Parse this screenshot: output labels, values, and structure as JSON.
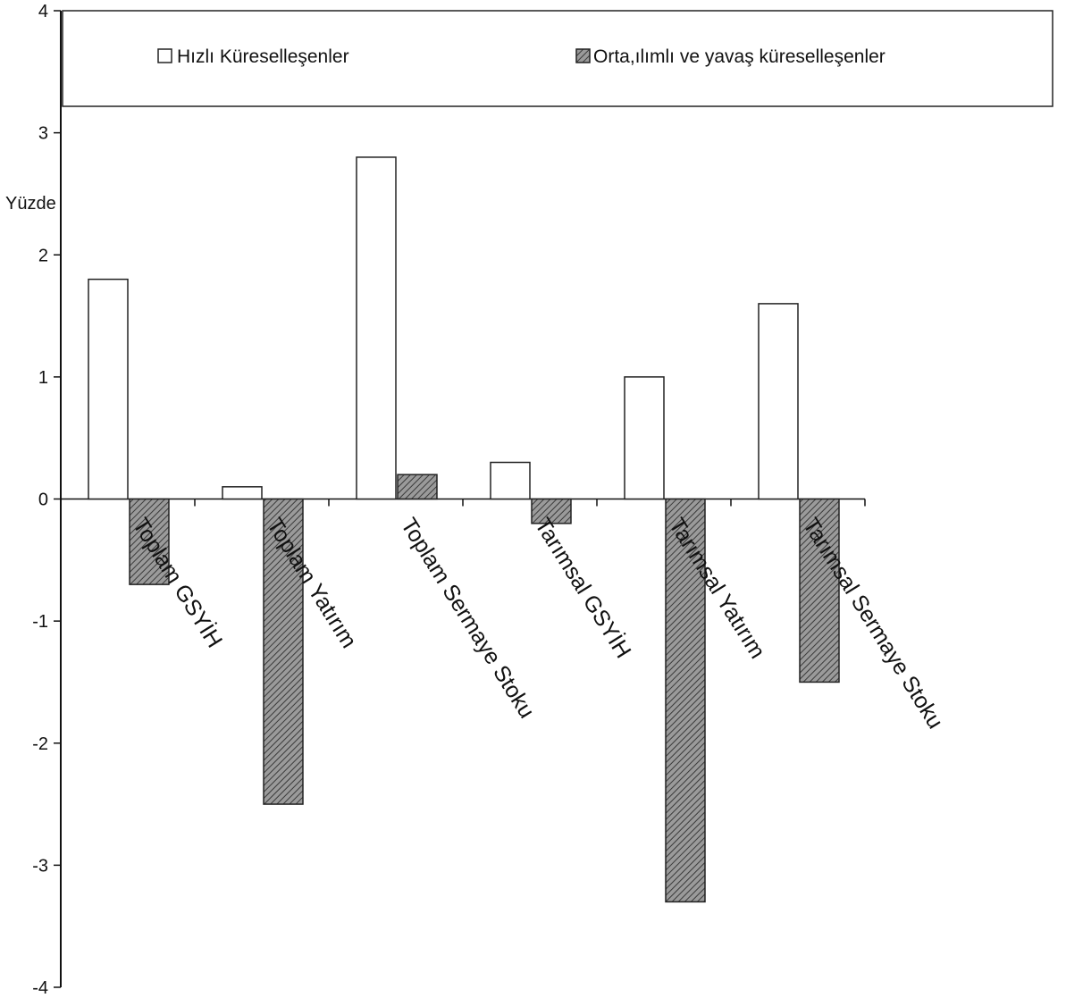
{
  "chart_data": {
    "type": "bar",
    "title": "",
    "xlabel": "",
    "ylabel": "Yüzde",
    "ylim": [
      -4,
      4
    ],
    "yticks": [
      4,
      3,
      2,
      1,
      0,
      -1,
      -2,
      -3,
      -4
    ],
    "grid": false,
    "legend_position": "top",
    "categories": [
      "Toplam GSYİH",
      "Toplam Yatırım",
      "Toplam Sermaye Stoku",
      "Tarımsal GSYİH",
      "Tarımsal Yatırım",
      "Tarımsal Sermaye Stoku"
    ],
    "series": [
      {
        "name": "Hızlı Küreselleşenler",
        "values": [
          1.8,
          0.1,
          2.8,
          0.3,
          1.0,
          1.6
        ],
        "color": "#ffffff"
      },
      {
        "name": "Orta,ılımlı ve yavaş küreselleşenler",
        "values": [
          -0.7,
          -2.5,
          0.2,
          -0.2,
          -3.3,
          -1.5
        ],
        "color": "#8a8a8a"
      }
    ]
  }
}
